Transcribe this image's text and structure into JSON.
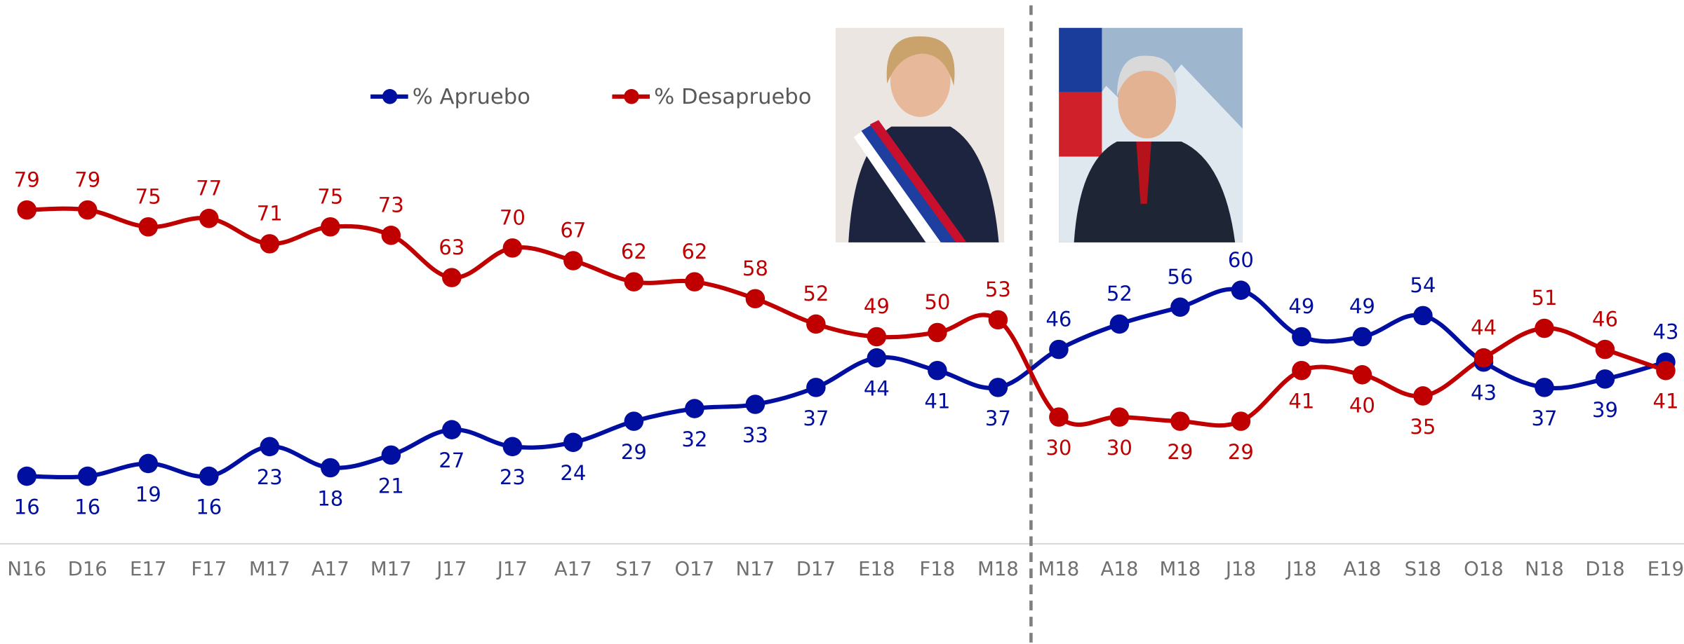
{
  "chart_data": {
    "type": "line",
    "categories": [
      "N16",
      "D16",
      "E17",
      "F17",
      "M17",
      "A17",
      "M17",
      "J17",
      "J17",
      "A17",
      "S17",
      "O17",
      "N17",
      "D17",
      "E18",
      "F18",
      "M18",
      "M18",
      "A18",
      "M18",
      "J18",
      "J18",
      "A18",
      "S18",
      "O18",
      "N18",
      "D18",
      "E19"
    ],
    "series": [
      {
        "name": "% Apruebo",
        "color": "#000f9f",
        "values": [
          16,
          16,
          19,
          16,
          23,
          18,
          21,
          27,
          23,
          24,
          29,
          32,
          33,
          37,
          44,
          41,
          37,
          46,
          52,
          56,
          60,
          49,
          49,
          54,
          43,
          37,
          39,
          43
        ]
      },
      {
        "name": "% Desapruebo",
        "color": "#c00000",
        "values": [
          79,
          79,
          75,
          77,
          71,
          75,
          73,
          63,
          70,
          67,
          62,
          62,
          58,
          52,
          49,
          50,
          53,
          30,
          30,
          29,
          29,
          41,
          40,
          35,
          44,
          51,
          46,
          41
        ]
      }
    ]
  }
}
